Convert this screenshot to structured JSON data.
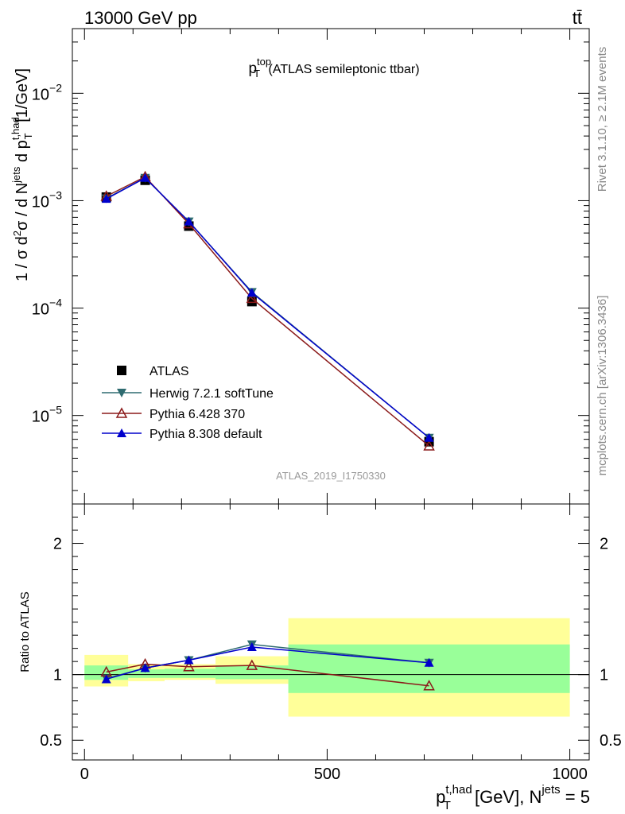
{
  "header": {
    "left_label": "13000 GeV pp",
    "right_label": "tt̄"
  },
  "right_side_text": {
    "rivet": "Rivet 3.1.10, ≥ 2.1M events",
    "mcplots": "mcplots.cern.ch [arXiv:1306.3436]"
  },
  "colors": {
    "atlas": "#000000",
    "herwig": "#2e6b70",
    "pythia6": "#8b1a1a",
    "pythia8": "#0000cc",
    "band_inner": "#99ff99",
    "band_outer": "#ffff99"
  },
  "chart_data": [
    {
      "type": "line",
      "title_main": "p",
      "title_sup": "top",
      "title_sub": "T",
      "title_rest": " (ATLAS semileptonic ttbar)",
      "ylabel": "1 / σ d²σ / d N^jets d p_T^t,had [1/GeV]",
      "ylabel_parts": {
        "a": "1 / σ d",
        "b": "2",
        "c": "σ /  d N",
        "d": "jets",
        "e": " d p",
        "f": "t,had",
        "g": "T",
        "h": " [1/GeV]"
      },
      "yscale": "log",
      "ylim": [
        1.5e-06,
        0.04
      ],
      "yticks": [
        {
          "value": 1e-05,
          "base": "10",
          "exp": "−5"
        },
        {
          "value": 0.0001,
          "base": "10",
          "exp": "−4"
        },
        {
          "value": 0.001,
          "base": "10",
          "exp": "−3"
        },
        {
          "value": 0.01,
          "base": "10",
          "exp": "−2"
        }
      ],
      "watermark": "ATLAS_2019_I1750330",
      "legend_position": "bottom-left",
      "x": [
        45,
        125,
        215,
        345,
        710
      ],
      "series": [
        {
          "name": "ATLAS",
          "marker": "square",
          "values": [
            0.00108,
            0.00155,
            0.00058,
            0.000115,
            5.7e-06
          ]
        },
        {
          "name": "Herwig 7.2.1 softTune",
          "marker": "triangle-down",
          "values": [
            0.00105,
            0.00163,
            0.00064,
            0.000141,
            6.2e-06
          ]
        },
        {
          "name": "Pythia 6.428 370",
          "marker": "triangle-open",
          "values": [
            0.0011,
            0.00167,
            0.00061,
            0.000123,
            5.2e-06
          ]
        },
        {
          "name": "Pythia 8.308 default",
          "marker": "triangle-up",
          "values": [
            0.00104,
            0.00163,
            0.00064,
            0.000139,
            6.2e-06
          ]
        }
      ]
    },
    {
      "type": "line",
      "ylabel": "Ratio to ATLAS",
      "ylim": [
        0.35,
        2.3
      ],
      "yticks": [
        0.5,
        1,
        2
      ],
      "ytick_labels": [
        "0.5",
        "1",
        "2"
      ],
      "xlabel_main": "p",
      "xlabel_sup": "t,had",
      "xlabel_sub": "T",
      "xlabel_mid": " [GeV], N",
      "xlabel_sup2": "jets",
      "xlabel_rest": " = 5",
      "xlim": [
        -25,
        1040
      ],
      "xticks": [
        0,
        500,
        1000
      ],
      "xtick_labels": [
        "0",
        "500",
        "1000"
      ],
      "reference_line": 1,
      "bins": [
        {
          "lo": 0,
          "hi": 90,
          "inner": [
            0.96,
            1.07
          ],
          "outer": [
            0.91,
            1.15
          ]
        },
        {
          "lo": 90,
          "hi": 165,
          "inner": [
            0.975,
            1.04
          ],
          "outer": [
            0.95,
            1.08
          ]
        },
        {
          "lo": 165,
          "hi": 270,
          "inner": [
            0.975,
            1.045
          ],
          "outer": [
            0.96,
            1.08
          ]
        },
        {
          "lo": 270,
          "hi": 420,
          "inner": [
            0.965,
            1.07
          ],
          "outer": [
            0.93,
            1.14
          ]
        },
        {
          "lo": 420,
          "hi": 1000,
          "inner": [
            0.86,
            1.23
          ],
          "outer": [
            0.68,
            1.43
          ]
        }
      ],
      "series": [
        {
          "name": "Herwig 7.2.1 softTune",
          "values": [
            0.97,
            1.05,
            1.11,
            1.23,
            1.09
          ]
        },
        {
          "name": "Pythia 6.428 370",
          "values": [
            1.02,
            1.08,
            1.06,
            1.07,
            0.915
          ]
        },
        {
          "name": "Pythia 8.308 default",
          "values": [
            0.965,
            1.05,
            1.11,
            1.21,
            1.09
          ]
        }
      ]
    }
  ]
}
